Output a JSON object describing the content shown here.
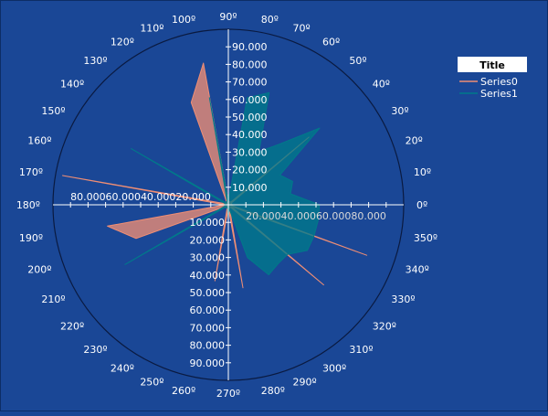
{
  "chart_data": {
    "type": "polar-area",
    "title": "",
    "angle_labels": [
      "0º",
      "10º",
      "20º",
      "30º",
      "40º",
      "50º",
      "60º",
      "70º",
      "80º",
      "90º",
      "100º",
      "110º",
      "120º",
      "130º",
      "140º",
      "150º",
      "160º",
      "170º",
      "180º",
      "190º",
      "200º",
      "210º",
      "220º",
      "230º",
      "240º",
      "250º",
      "260º",
      "270º",
      "280º",
      "290º",
      "300º",
      "310º",
      "320º",
      "330º",
      "340º",
      "350º"
    ],
    "radial_ticks": [
      "10.000",
      "20.000",
      "30.000",
      "40.000",
      "50.000",
      "60.000",
      "70.000",
      "80.000",
      "90.000"
    ],
    "radial_max": 100,
    "legend": {
      "title": "Title",
      "position": "top-right"
    },
    "series": [
      {
        "name": "Series0",
        "color": "#f08e74",
        "points": [
          {
            "angle": 0,
            "r": 2
          },
          {
            "angle": 10,
            "r": 2
          },
          {
            "angle": 20,
            "r": 2
          },
          {
            "angle": 30,
            "r": 2
          },
          {
            "angle": 40,
            "r": 60
          },
          {
            "angle": 50,
            "r": 2
          },
          {
            "angle": 60,
            "r": 2
          },
          {
            "angle": 70,
            "r": 2
          },
          {
            "angle": 80,
            "r": 2
          },
          {
            "angle": 90,
            "r": 2
          },
          {
            "angle": 100,
            "r": 82
          },
          {
            "angle": 110,
            "r": 62
          },
          {
            "angle": 120,
            "r": 2
          },
          {
            "angle": 130,
            "r": 2
          },
          {
            "angle": 140,
            "r": 2
          },
          {
            "angle": 150,
            "r": 2
          },
          {
            "angle": 160,
            "r": 2
          },
          {
            "angle": 170,
            "r": 96
          },
          {
            "angle": 180,
            "r": 2
          },
          {
            "angle": 190,
            "r": 70
          },
          {
            "angle": 200,
            "r": 56
          },
          {
            "angle": 210,
            "r": 2
          },
          {
            "angle": 220,
            "r": 2
          },
          {
            "angle": 230,
            "r": 2
          },
          {
            "angle": 240,
            "r": 2
          },
          {
            "angle": 250,
            "r": 2
          },
          {
            "angle": 260,
            "r": 44
          },
          {
            "angle": 270,
            "r": 2
          },
          {
            "angle": 280,
            "r": 48
          },
          {
            "angle": 290,
            "r": 2
          },
          {
            "angle": 300,
            "r": 2
          },
          {
            "angle": 310,
            "r": 2
          },
          {
            "angle": 320,
            "r": 71
          },
          {
            "angle": 330,
            "r": 2
          },
          {
            "angle": 340,
            "r": 84
          },
          {
            "angle": 350,
            "r": 2
          }
        ]
      },
      {
        "name": "Series1",
        "color": "#007a8a",
        "points": [
          {
            "angle": 0,
            "r": 52
          },
          {
            "angle": 10,
            "r": 36
          },
          {
            "angle": 20,
            "r": 39
          },
          {
            "angle": 30,
            "r": 34
          },
          {
            "angle": 40,
            "r": 68
          },
          {
            "angle": 50,
            "r": 45
          },
          {
            "angle": 60,
            "r": 35
          },
          {
            "angle": 70,
            "r": 68
          },
          {
            "angle": 80,
            "r": 62
          },
          {
            "angle": 90,
            "r": 2
          },
          {
            "angle": 100,
            "r": 62
          },
          {
            "angle": 110,
            "r": 2
          },
          {
            "angle": 120,
            "r": 2
          },
          {
            "angle": 130,
            "r": 2
          },
          {
            "angle": 140,
            "r": 2
          },
          {
            "angle": 150,
            "r": 64
          },
          {
            "angle": 160,
            "r": 2
          },
          {
            "angle": 170,
            "r": 2
          },
          {
            "angle": 180,
            "r": 2
          },
          {
            "angle": 190,
            "r": 2
          },
          {
            "angle": 200,
            "r": 2
          },
          {
            "angle": 210,
            "r": 68
          },
          {
            "angle": 220,
            "r": 2
          },
          {
            "angle": 230,
            "r": 2
          },
          {
            "angle": 240,
            "r": 2
          },
          {
            "angle": 250,
            "r": 2
          },
          {
            "angle": 260,
            "r": 2
          },
          {
            "angle": 270,
            "r": 8
          },
          {
            "angle": 280,
            "r": 2
          },
          {
            "angle": 290,
            "r": 32
          },
          {
            "angle": 300,
            "r": 46
          },
          {
            "angle": 310,
            "r": 44
          },
          {
            "angle": 320,
            "r": 44
          },
          {
            "angle": 330,
            "r": 52
          },
          {
            "angle": 340,
            "r": 52
          },
          {
            "angle": 350,
            "r": 52
          }
        ]
      }
    ]
  }
}
